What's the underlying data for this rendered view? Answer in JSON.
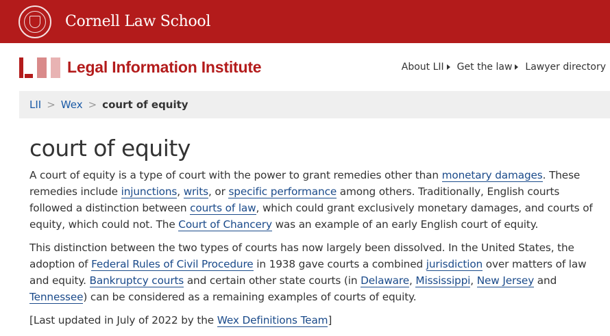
{
  "banner": {
    "title": "Cornell Law School",
    "brand_color": "#b31b1b"
  },
  "header": {
    "logo_mark": "LII",
    "logo_text": "Legal Information Institute",
    "nav": [
      {
        "label": "About LII"
      },
      {
        "label": "Get the law"
      },
      {
        "label": "Lawyer directory"
      }
    ]
  },
  "breadcrumb": {
    "items": [
      "LII",
      "Wex"
    ],
    "current": "court of equity",
    "separator": ">"
  },
  "main": {
    "title": "court of equity",
    "paragraphs": [
      [
        {
          "t": "A court of equity is a type of court with the power to grant remedies other than "
        },
        {
          "t": "monetary damages",
          "link": true
        },
        {
          "t": ". These remedies include "
        },
        {
          "t": "injunctions",
          "link": true
        },
        {
          "t": ", "
        },
        {
          "t": "writs",
          "link": true
        },
        {
          "t": ", or "
        },
        {
          "t": "specific performance",
          "link": true
        },
        {
          "t": " among others. Traditionally, English courts followed a distinction between "
        },
        {
          "t": "courts of law",
          "link": true
        },
        {
          "t": ", which could grant exclusively monetary damages, and courts of equity, which could not. The "
        },
        {
          "t": "Court of Chancery",
          "link": true
        },
        {
          "t": " was an example of an early English court of equity."
        }
      ],
      [
        {
          "t": "This distinction between the two types of courts has now largely been dissolved. In the United States, the adoption of "
        },
        {
          "t": "Federal Rules of Civil Procedure",
          "link": true
        },
        {
          "t": " in 1938 gave courts a combined "
        },
        {
          "t": "jurisdiction",
          "link": true
        },
        {
          "t": " over matters of law and equity.  "
        },
        {
          "t": "Bankruptcy courts",
          "link": true
        },
        {
          "t": " and certain other state courts (in "
        },
        {
          "t": "Delaware",
          "link": true
        },
        {
          "t": ", "
        },
        {
          "t": "Mississippi",
          "link": true
        },
        {
          "t": ", "
        },
        {
          "t": "New Jersey",
          "link": true
        },
        {
          "t": " and "
        },
        {
          "t": "Tennessee",
          "link": true
        },
        {
          "t": ") can be considered as a remaining examples of courts of equity."
        }
      ],
      [
        {
          "t": "[Last updated in July of 2022 by the "
        },
        {
          "t": "Wex Definitions Team",
          "link": true
        },
        {
          "t": "]"
        }
      ]
    ]
  }
}
